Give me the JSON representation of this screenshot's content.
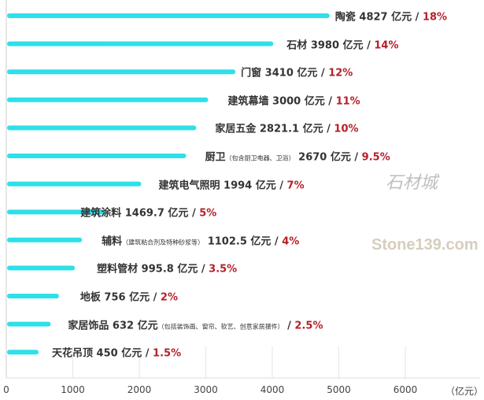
{
  "chart_data": {
    "type": "bar",
    "orientation": "horizontal",
    "unit": "（亿元）",
    "xlim": [
      0,
      6000
    ],
    "x_ticks": [
      "0",
      "1000",
      "2000",
      "3000",
      "4000",
      "5000",
      "6000"
    ],
    "grid": true,
    "bar_color": "#2ee0e8",
    "percent_color": "#b5202a",
    "items": [
      {
        "name": "陶瓷",
        "note": "",
        "value": 4827,
        "value_label": "4827",
        "pct": "18%"
      },
      {
        "name": "石材",
        "note": "",
        "value": 3980,
        "value_label": "3980",
        "pct": "14%"
      },
      {
        "name": "门窗",
        "note": "",
        "value": 3410,
        "value_label": "3410",
        "pct": "12%"
      },
      {
        "name": "建筑幕墙",
        "note": "",
        "value": 3000,
        "value_label": "3000",
        "pct": "11%"
      },
      {
        "name": "家居五金",
        "note": "",
        "value": 2821.1,
        "value_label": "2821.1",
        "pct": "10%"
      },
      {
        "name": "厨卫",
        "note": "（包含厨卫电器、卫浴）",
        "value": 2670,
        "value_label": "2670",
        "pct": "9.5%"
      },
      {
        "name": "建筑电气照明",
        "note": "",
        "value": 1994,
        "value_label": "1994",
        "pct": "7%"
      },
      {
        "name": "建筑涂料",
        "note": "",
        "value": 1469.7,
        "value_label": "1469.7",
        "pct": "5%"
      },
      {
        "name": "辅料",
        "note": "（建筑粘合剂及特种砂浆等）",
        "value": 1102.5,
        "value_label": "1102.5",
        "pct": "4%"
      },
      {
        "name": "塑料管材",
        "note": "",
        "value": 995.8,
        "value_label": "995.8",
        "pct": "3.5%"
      },
      {
        "name": "地板",
        "note": "",
        "value": 756,
        "value_label": "756",
        "pct": "2%"
      },
      {
        "name": "家居饰品",
        "note": "（包括装饰画、窗帘、软艺、创意家居摆件）",
        "note_after_unit": true,
        "value": 632,
        "value_label": "632",
        "pct": "2.5%"
      },
      {
        "name": "天花吊顶",
        "note": "",
        "value": 450,
        "value_label": "450",
        "pct": "1.5%"
      }
    ],
    "unit_word": "亿元"
  },
  "watermark": {
    "text": "Stone139.com",
    "text_cn": "石材城"
  }
}
